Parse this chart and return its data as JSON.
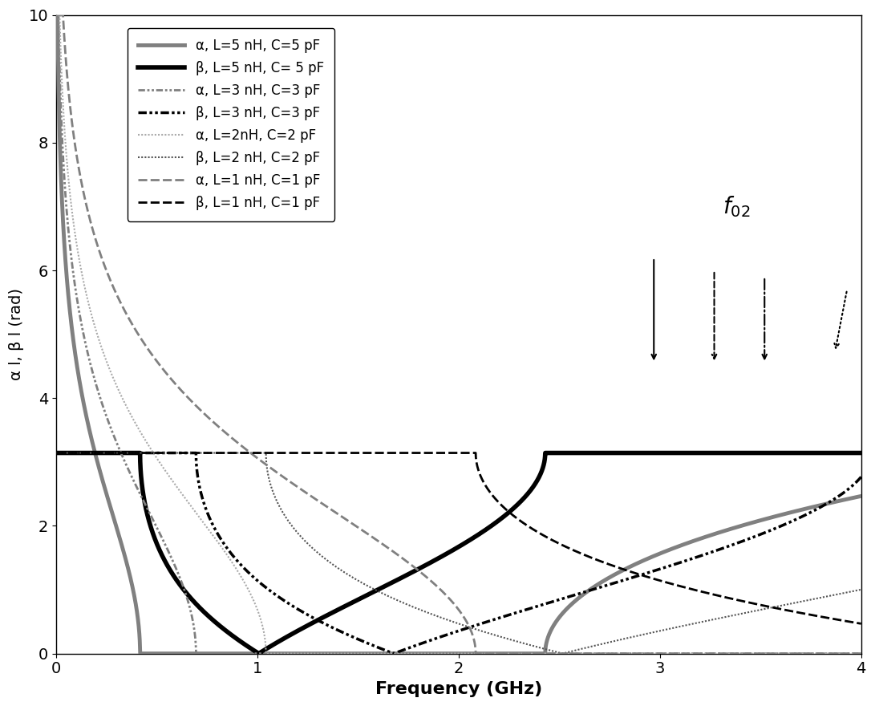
{
  "title": "",
  "xlabel": "Frequency (GHz)",
  "ylabel": "α l, β l (rad)",
  "xlim": [
    0,
    4
  ],
  "ylim": [
    0,
    10
  ],
  "xticks": [
    0,
    1,
    2,
    3,
    4
  ],
  "yticks": [
    0,
    2,
    4,
    6,
    8,
    10
  ],
  "L_vals": [
    5e-09,
    3e-09,
    2e-09,
    1e-09
  ],
  "C_vals": [
    5e-12,
    3e-12,
    2e-12,
    1e-12
  ],
  "color_alpha": [
    "#808080",
    "#808080",
    "#aaaaaa",
    "#808080"
  ],
  "color_beta": [
    "#000000",
    "#000000",
    "#555555",
    "#000000"
  ],
  "lw_alpha": [
    3.5,
    2.0,
    1.5,
    2.0
  ],
  "lw_beta": [
    4.0,
    2.5,
    1.5,
    2.0
  ],
  "labels_alpha": [
    "α, L=5 nH, C=5 pF",
    "α, L=3 nH, C=3 pF",
    "α, L=2nH, C=2 pF",
    "α, L=1 nH, C=1 pF"
  ],
  "labels_beta": [
    "β, L=5 nH, C= 5 pF",
    "β, L=3 nH, C=3 pF",
    "β, L=2 nH, C=2 pF",
    "β, L=1 nH, C=1 pF"
  ],
  "f02_x": 3.38,
  "f02_y": 6.8,
  "arrow_coords": [
    [
      2.97,
      6.2,
      2.97,
      4.55,
      "solid"
    ],
    [
      3.27,
      6.0,
      3.27,
      4.55,
      "dashed"
    ],
    [
      3.52,
      5.9,
      3.52,
      4.55,
      "dashdot"
    ],
    [
      3.93,
      5.7,
      3.87,
      4.72,
      "dotted"
    ]
  ],
  "background_color": "#ffffff"
}
